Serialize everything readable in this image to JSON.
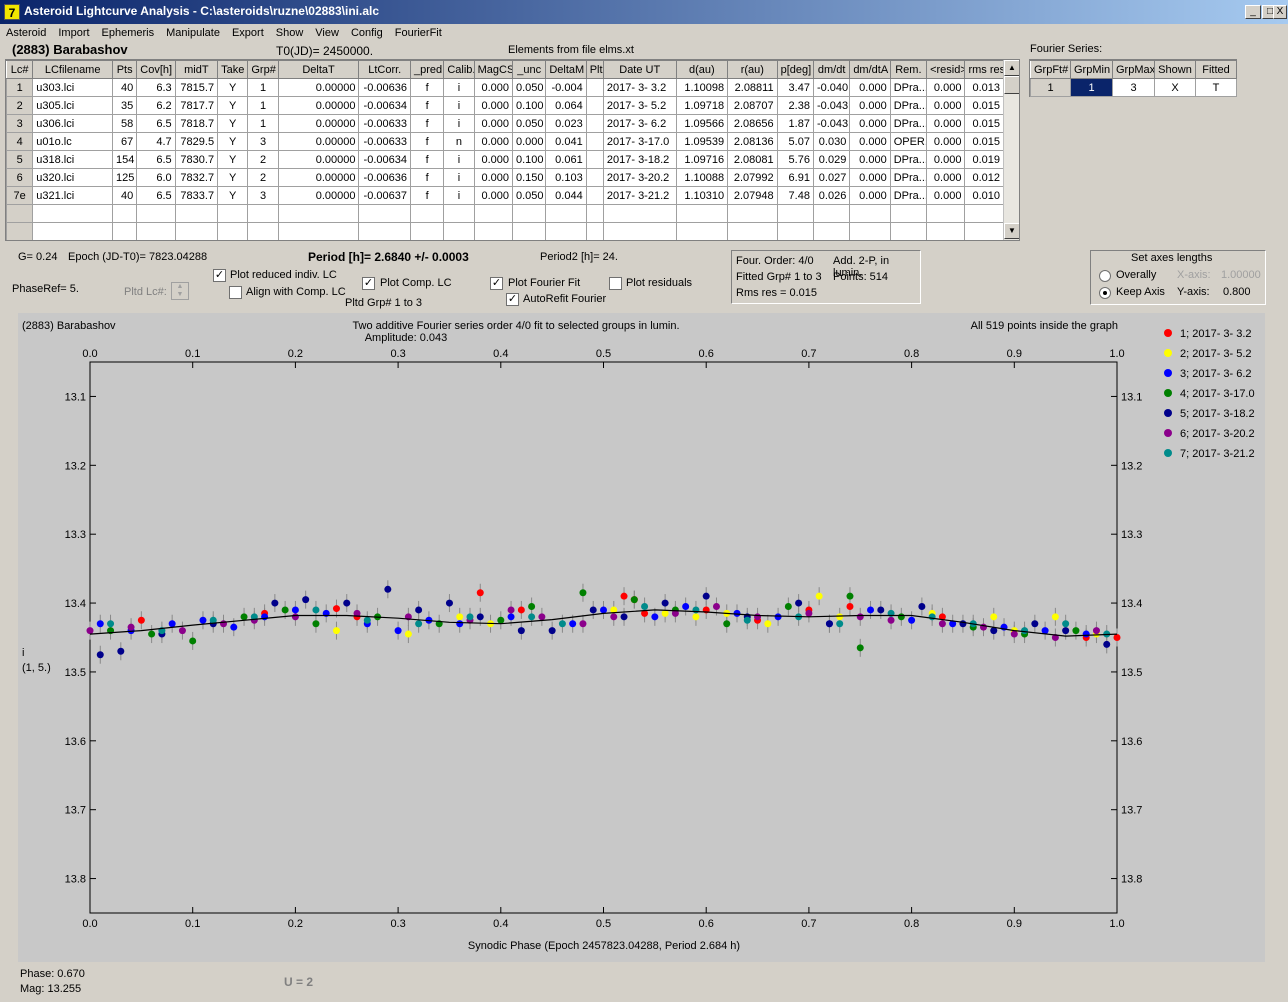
{
  "window": {
    "title": "Asteroid Lightcurve Analysis - C:\\asteroids\\ruzne\\02883\\ini.alc",
    "icon": "alc-app-icon",
    "buttons": [
      "_",
      "□",
      "X"
    ]
  },
  "menu": [
    "Asteroid",
    "Import",
    "Ephemeris",
    "Manipulate",
    "Export",
    "Show",
    "View",
    "Config",
    "FourierFit"
  ],
  "header": {
    "asteroid": "(2883) Barabashov",
    "t0": "T0(JD)= 2450000.",
    "elements": "Elements from file elms.xt"
  },
  "lc_table": {
    "columns": [
      "Lc#",
      "LCfilename",
      "Pts",
      "Cov[h]",
      "midT",
      "Take",
      "Grp#",
      "DeltaT",
      "LtCorr.",
      "_pred.",
      "Calib.",
      "MagCS",
      "_unc",
      "DeltaM",
      "Plt",
      "Date UT",
      "d(au)",
      "r(au)",
      "p[deg]",
      "dm/dt",
      "dm/dtA",
      "Rem.",
      "<resid>",
      "rms res"
    ],
    "rows": [
      [
        "1",
        "u303.lci",
        "40",
        "6.3",
        "7815.7",
        "Y",
        "1",
        "0.00000",
        "-0.00636",
        "f",
        "i",
        "0.000",
        "0.050",
        "-0.004",
        "",
        "2017- 3- 3.2",
        "1.10098",
        "2.08811",
        "3.47",
        "-0.040",
        "0.000",
        "DPra...",
        "0.000",
        "0.013"
      ],
      [
        "2",
        "u305.lci",
        "35",
        "6.2",
        "7817.7",
        "Y",
        "1",
        "0.00000",
        "-0.00634",
        "f",
        "i",
        "0.000",
        "0.100",
        "0.064",
        "",
        "2017- 3- 5.2",
        "1.09718",
        "2.08707",
        "2.38",
        "-0.043",
        "0.000",
        "DPra...",
        "0.000",
        "0.015"
      ],
      [
        "3",
        "u306.lci",
        "58",
        "6.5",
        "7818.7",
        "Y",
        "1",
        "0.00000",
        "-0.00633",
        "f",
        "i",
        "0.000",
        "0.050",
        "0.023",
        "",
        "2017- 3- 6.2",
        "1.09566",
        "2.08656",
        "1.87",
        "-0.043",
        "0.000",
        "DPra...",
        "0.000",
        "0.015"
      ],
      [
        "4",
        "u01o.lc",
        "67",
        "4.7",
        "7829.5",
        "Y",
        "3",
        "0.00000",
        "-0.00633",
        "f",
        "n",
        "0.000",
        "0.000",
        "0.041",
        "",
        "2017- 3-17.0",
        "1.09539",
        "2.08136",
        "5.07",
        "0.030",
        "0.000",
        "OPER.",
        "0.000",
        "0.015"
      ],
      [
        "5",
        "u318.lci",
        "154",
        "6.5",
        "7830.7",
        "Y",
        "2",
        "0.00000",
        "-0.00634",
        "f",
        "i",
        "0.000",
        "0.100",
        "0.061",
        "",
        "2017- 3-18.2",
        "1.09716",
        "2.08081",
        "5.76",
        "0.029",
        "0.000",
        "DPra...",
        "0.000",
        "0.019"
      ],
      [
        "6",
        "u320.lci",
        "125",
        "6.0",
        "7832.7",
        "Y",
        "2",
        "0.00000",
        "-0.00636",
        "f",
        "i",
        "0.000",
        "0.150",
        "0.103",
        "",
        "2017- 3-20.2",
        "1.10088",
        "2.07992",
        "6.91",
        "0.027",
        "0.000",
        "DPra...",
        "0.000",
        "0.012"
      ],
      [
        "7e",
        "u321.lci",
        "40",
        "6.5",
        "7833.7",
        "Y",
        "3",
        "0.00000",
        "-0.00637",
        "f",
        "i",
        "0.000",
        "0.050",
        "0.044",
        "",
        "2017- 3-21.2",
        "1.10310",
        "2.07948",
        "7.48",
        "0.026",
        "0.000",
        "DPra...",
        "0.000",
        "0.010"
      ]
    ]
  },
  "fourier_series": {
    "label": "Fourier Series:",
    "columns": [
      "GrpFt#",
      "GrpMin",
      "GrpMax",
      "Shown",
      "Fitted"
    ],
    "row": [
      "1",
      "1",
      "3",
      "X",
      "T"
    ]
  },
  "info": {
    "g": "G= 0.24",
    "epoch": "Epoch (JD-T0)= 7823.04288",
    "period": "Period [h]= 2.6840 +/- 0.0003",
    "period2": "Period2 [h]= 24.",
    "phaseref": "PhaseRef= 5.",
    "pltd_lc": "Pltd Lc#:",
    "pltd_grp": "Pltd Grp#  1   to   3"
  },
  "checkboxes": {
    "plot_reduced": "Plot reduced indiv. LC",
    "align_comp": "Align with Comp. LC",
    "plot_comp": "Plot Comp. LC",
    "plot_fourier": "Plot Fourier Fit",
    "autorefit": "AutoRefit Fourier",
    "plot_residuals": "Plot residuals"
  },
  "fit_panel": {
    "order": "Four. Order:  4/0",
    "add": "Add. 2-P, in lumin.",
    "fitted": "Fitted Grp# 1 to 3",
    "points": "Points: 514",
    "rms": "Rms res      = 0.015"
  },
  "axes": {
    "title": "Set axes lengths",
    "overally": "Overally",
    "keep_axis": "Keep Axis",
    "x_label": "X-axis:",
    "x_value": "1.00000",
    "y_label": "Y-axis:",
    "y_value": "0.800",
    "selected": "keep_axis"
  },
  "status": {
    "phase": "Phase:  0.670",
    "mag": "Mag:    13.255",
    "u": "U = 2"
  },
  "colors": {
    "accent_blue": "#0a246a",
    "plot_bg": "#c8c8c8",
    "fit_line": "#000000"
  },
  "chart_data": {
    "type": "scatter",
    "title": "Two additive Fourier series order 4/0 fit to selected groups in lumin.",
    "subtitle": "Amplitude: 0.043",
    "object_label": "(2883) Barabashov",
    "points_note": "All 519 points inside the graph",
    "xlabel": "Synodic Phase (Epoch 2457823.04288, Period 2.684 h)",
    "ylabel": "i",
    "ylabel2": "(1, 5.)",
    "xlim": [
      0.0,
      1.0
    ],
    "ylim": [
      13.05,
      13.85
    ],
    "y_inverted": true,
    "xticks": [
      "0.0",
      "0.1",
      "0.2",
      "0.3",
      "0.4",
      "0.5",
      "0.6",
      "0.7",
      "0.8",
      "0.9",
      "1.0"
    ],
    "yticks": [
      "13.1",
      "13.2",
      "13.3",
      "13.4",
      "13.5",
      "13.6",
      "13.7",
      "13.8"
    ],
    "legend_position": "right",
    "fourier_fit": {
      "x": [
        0.0,
        0.05,
        0.1,
        0.15,
        0.2,
        0.25,
        0.3,
        0.35,
        0.4,
        0.45,
        0.5,
        0.55,
        0.6,
        0.65,
        0.7,
        0.75,
        0.8,
        0.85,
        0.9,
        0.95,
        1.0
      ],
      "y": [
        13.445,
        13.44,
        13.432,
        13.425,
        13.418,
        13.418,
        13.422,
        13.428,
        13.43,
        13.424,
        13.415,
        13.41,
        13.413,
        13.418,
        13.42,
        13.418,
        13.418,
        13.428,
        13.44,
        13.448,
        13.445
      ]
    },
    "series": [
      {
        "name": "1; 2017- 3- 3.2",
        "color": "#ff0000",
        "x": [
          0.05,
          0.17,
          0.24,
          0.26,
          0.38,
          0.42,
          0.52,
          0.53,
          0.54,
          0.6,
          0.65,
          0.7,
          0.74,
          0.83,
          0.97,
          1.0
        ],
        "y": [
          13.425,
          13.415,
          13.408,
          13.42,
          13.385,
          13.41,
          13.39,
          13.395,
          13.415,
          13.41,
          13.425,
          13.41,
          13.405,
          13.42,
          13.45,
          13.45
        ]
      },
      {
        "name": "2; 2017- 3- 5.2",
        "color": "#ffff00",
        "x": [
          0.24,
          0.31,
          0.36,
          0.39,
          0.51,
          0.56,
          0.59,
          0.62,
          0.66,
          0.71,
          0.73,
          0.82,
          0.88,
          0.9,
          0.94,
          0.98
        ],
        "y": [
          13.44,
          13.445,
          13.42,
          13.43,
          13.41,
          13.415,
          13.42,
          13.415,
          13.43,
          13.39,
          13.42,
          13.415,
          13.42,
          13.44,
          13.42,
          13.445
        ]
      },
      {
        "name": "3; 2017- 3- 6.2",
        "color": "#0000ff",
        "x": [
          0.01,
          0.04,
          0.08,
          0.11,
          0.14,
          0.17,
          0.2,
          0.23,
          0.27,
          0.3,
          0.33,
          0.36,
          0.41,
          0.47,
          0.5,
          0.55,
          0.58,
          0.63,
          0.67,
          0.72,
          0.76,
          0.8,
          0.84,
          0.89,
          0.93,
          0.97
        ],
        "y": [
          13.43,
          13.44,
          13.43,
          13.425,
          13.435,
          13.42,
          13.41,
          13.415,
          13.43,
          13.44,
          13.425,
          13.43,
          13.42,
          13.43,
          13.41,
          13.42,
          13.405,
          13.415,
          13.42,
          13.43,
          13.41,
          13.425,
          13.43,
          13.435,
          13.44,
          13.445
        ]
      },
      {
        "name": "4; 2017- 3-17.0",
        "color": "#008000",
        "x": [
          0.02,
          0.06,
          0.1,
          0.15,
          0.19,
          0.22,
          0.28,
          0.34,
          0.4,
          0.43,
          0.48,
          0.53,
          0.57,
          0.62,
          0.68,
          0.74,
          0.75,
          0.79,
          0.86,
          0.91,
          0.96
        ],
        "y": [
          13.44,
          13.445,
          13.455,
          13.42,
          13.41,
          13.43,
          13.42,
          13.43,
          13.425,
          13.405,
          13.385,
          13.395,
          13.41,
          13.43,
          13.405,
          13.39,
          13.465,
          13.42,
          13.435,
          13.445,
          13.44
        ]
      },
      {
        "name": "5; 2017- 3-18.2",
        "color": "#00008b",
        "x": [
          0.01,
          0.03,
          0.07,
          0.12,
          0.18,
          0.21,
          0.25,
          0.29,
          0.32,
          0.35,
          0.38,
          0.42,
          0.45,
          0.49,
          0.52,
          0.56,
          0.6,
          0.64,
          0.69,
          0.72,
          0.77,
          0.81,
          0.85,
          0.88,
          0.92,
          0.95,
          0.99
        ],
        "y": [
          13.475,
          13.47,
          13.445,
          13.43,
          13.4,
          13.395,
          13.4,
          13.38,
          13.41,
          13.4,
          13.42,
          13.44,
          13.44,
          13.41,
          13.42,
          13.4,
          13.39,
          13.42,
          13.4,
          13.43,
          13.41,
          13.405,
          13.43,
          13.44,
          13.43,
          13.44,
          13.46
        ]
      },
      {
        "name": "6; 2017- 3-20.2",
        "color": "#8b008b",
        "x": [
          0.0,
          0.04,
          0.09,
          0.13,
          0.16,
          0.2,
          0.26,
          0.31,
          0.37,
          0.41,
          0.44,
          0.48,
          0.51,
          0.57,
          0.61,
          0.65,
          0.7,
          0.75,
          0.78,
          0.83,
          0.87,
          0.9,
          0.94,
          0.98
        ],
        "y": [
          13.44,
          13.435,
          13.44,
          13.43,
          13.425,
          13.42,
          13.415,
          13.42,
          13.425,
          13.41,
          13.42,
          13.43,
          13.42,
          13.415,
          13.405,
          13.42,
          13.415,
          13.42,
          13.425,
          13.43,
          13.435,
          13.445,
          13.45,
          13.44
        ]
      },
      {
        "name": "7; 2017- 3-21.2",
        "color": "#008b8b",
        "x": [
          0.02,
          0.07,
          0.12,
          0.16,
          0.22,
          0.27,
          0.32,
          0.37,
          0.43,
          0.46,
          0.54,
          0.59,
          0.64,
          0.69,
          0.73,
          0.78,
          0.82,
          0.86,
          0.91,
          0.95,
          0.99
        ],
        "y": [
          13.43,
          13.44,
          13.425,
          13.42,
          13.41,
          13.425,
          13.43,
          13.42,
          13.42,
          13.43,
          13.405,
          13.41,
          13.425,
          13.42,
          13.43,
          13.415,
          13.42,
          13.43,
          13.44,
          13.43,
          13.445
        ]
      }
    ]
  }
}
